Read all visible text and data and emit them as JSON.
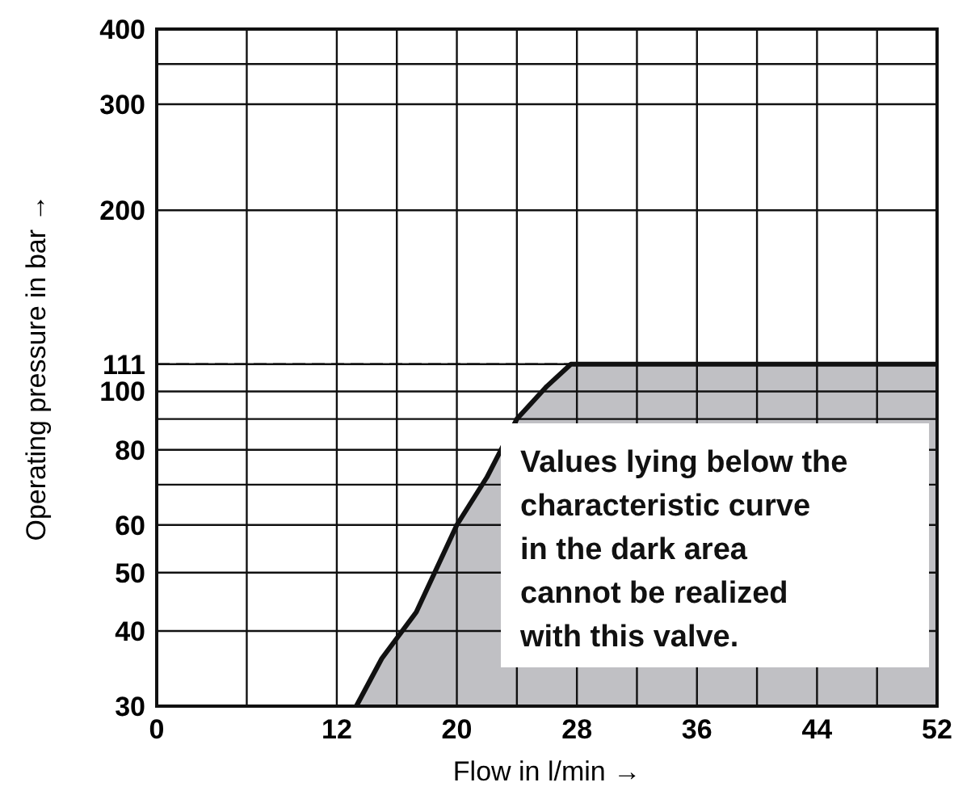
{
  "chart_data": {
    "type": "area",
    "xlabel": "Flow in l/min →",
    "ylabel": "Operating pressure in bar →",
    "x": [
      13.3,
      15,
      17.3,
      20,
      22,
      24,
      26,
      27.6,
      52
    ],
    "series": [
      {
        "color": "#c0c0c4",
        "values": [
          30,
          36,
          43,
          60,
          72,
          90,
          102,
          111,
          111
        ]
      }
    ],
    "xlim": [
      0,
      52
    ],
    "xticks": [
      0,
      {
        "value": 6,
        "label": null
      },
      12,
      {
        "value": 16,
        "label": null
      },
      20,
      {
        "value": 24,
        "label": null
      },
      28,
      {
        "value": 32,
        "label": null
      },
      36,
      {
        "value": 40,
        "label": null
      },
      44,
      {
        "value": 48,
        "label": null
      },
      52
    ],
    "ylim": [
      30,
      400
    ],
    "log": true,
    "yticks": [
      30,
      40,
      50,
      60,
      {
        "value": 70,
        "label": null
      },
      80,
      {
        "value": 90,
        "label": null
      },
      100,
      111,
      200,
      300,
      {
        "value": 350,
        "label": null
      },
      400
    ],
    "grid": true,
    "ref_lines": [
      {
        "axis": "y",
        "value": 111,
        "label": null,
        "line_style": "dashed"
      }
    ],
    "annotations": [
      "Values lying below the characteristic curve in the dark area cannot be realized with this valve."
    ]
  }
}
